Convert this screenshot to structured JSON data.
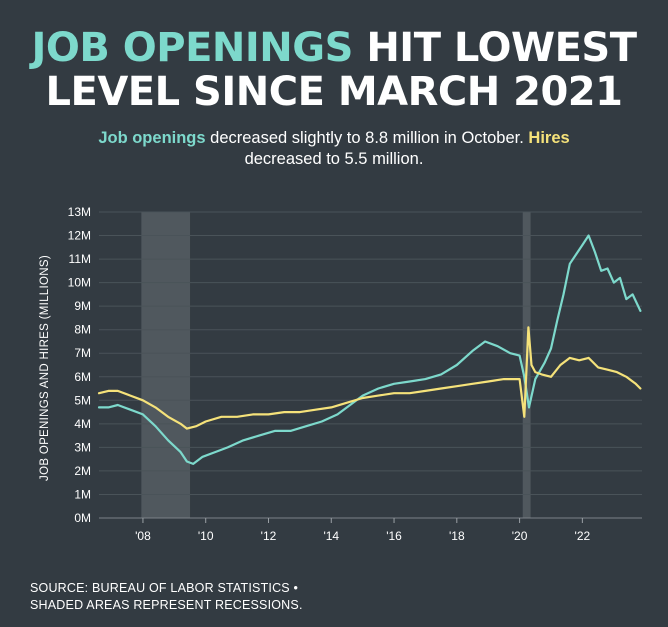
{
  "headline": {
    "accent": "JOB OPENINGS",
    "rest_line1": " HIT LOWEST",
    "line2": "LEVEL SINCE MARCH 2021"
  },
  "subtitle": {
    "openings_label": "Job openings",
    "part1": " decreased slightly to 8.8 million in October. ",
    "hires_label": "Hires",
    "part2": "decreased to 5.5 million."
  },
  "source": {
    "line1": "SOURCE: BUREAU OF LABOR STATISTICS •",
    "line2": "SHADED AREAS REPRESENT RECESSIONS."
  },
  "colors": {
    "background": "#333b42",
    "openings": "#7dd9cc",
    "hires": "#f5e27a",
    "recession": "#50585e",
    "grid": "#4a5359"
  },
  "chart_data": {
    "type": "line",
    "ylabel": "JOB OPENINGS AND HIRES (MILLIONS)",
    "xlabel": "",
    "xlim": [
      2006.6,
      2023.9
    ],
    "ylim": [
      0,
      13
    ],
    "y_ticks": [
      0,
      1,
      2,
      3,
      4,
      5,
      6,
      7,
      8,
      9,
      10,
      11,
      12,
      13
    ],
    "y_tick_labels": [
      "0M",
      "1M",
      "2M",
      "3M",
      "4M",
      "5M",
      "6M",
      "7M",
      "8M",
      "9M",
      "10M",
      "11M",
      "12M",
      "13M"
    ],
    "x_ticks": [
      2008,
      2010,
      2012,
      2014,
      2016,
      2018,
      2020,
      2022
    ],
    "x_tick_labels": [
      "'08",
      "'10",
      "'12",
      "'14",
      "'16",
      "'18",
      "'20",
      "'22"
    ],
    "recessions": [
      [
        2007.95,
        2009.5
      ],
      [
        2020.1,
        2020.35
      ]
    ],
    "series": [
      {
        "name": "Job openings",
        "x": [
          2006.6,
          2006.9,
          2007.2,
          2007.6,
          2008.0,
          2008.4,
          2008.8,
          2009.2,
          2009.4,
          2009.6,
          2009.9,
          2010.3,
          2010.7,
          2011.2,
          2011.7,
          2012.2,
          2012.7,
          2013.2,
          2013.7,
          2014.2,
          2014.6,
          2015.0,
          2015.5,
          2016.0,
          2016.5,
          2017.0,
          2017.5,
          2018.0,
          2018.5,
          2018.9,
          2019.3,
          2019.7,
          2020.0,
          2020.15,
          2020.3,
          2020.5,
          2020.8,
          2021.0,
          2021.2,
          2021.4,
          2021.6,
          2021.8,
          2022.0,
          2022.2,
          2022.4,
          2022.6,
          2022.8,
          2023.0,
          2023.2,
          2023.4,
          2023.6,
          2023.85
        ],
        "values": [
          4.7,
          4.7,
          4.8,
          4.6,
          4.4,
          3.9,
          3.3,
          2.8,
          2.4,
          2.3,
          2.6,
          2.8,
          3.0,
          3.3,
          3.5,
          3.7,
          3.7,
          3.9,
          4.1,
          4.4,
          4.8,
          5.2,
          5.5,
          5.7,
          5.8,
          5.9,
          6.1,
          6.5,
          7.1,
          7.5,
          7.3,
          7.0,
          6.9,
          6.0,
          4.7,
          5.9,
          6.6,
          7.2,
          8.4,
          9.5,
          10.8,
          11.2,
          11.6,
          12.0,
          11.3,
          10.5,
          10.6,
          10.0,
          10.2,
          9.3,
          9.5,
          8.8
        ]
      },
      {
        "name": "Hires",
        "x": [
          2006.6,
          2006.9,
          2007.2,
          2007.6,
          2008.0,
          2008.4,
          2008.8,
          2009.2,
          2009.4,
          2009.7,
          2010.0,
          2010.5,
          2011.0,
          2011.5,
          2012.0,
          2012.5,
          2013.0,
          2013.5,
          2014.0,
          2014.5,
          2015.0,
          2015.5,
          2016.0,
          2016.5,
          2017.0,
          2017.5,
          2018.0,
          2018.5,
          2019.0,
          2019.5,
          2020.0,
          2020.15,
          2020.28,
          2020.38,
          2020.5,
          2020.7,
          2021.0,
          2021.3,
          2021.6,
          2021.9,
          2022.2,
          2022.5,
          2022.8,
          2023.1,
          2023.4,
          2023.7,
          2023.85
        ],
        "values": [
          5.3,
          5.4,
          5.4,
          5.2,
          5.0,
          4.7,
          4.3,
          4.0,
          3.8,
          3.9,
          4.1,
          4.3,
          4.3,
          4.4,
          4.4,
          4.5,
          4.5,
          4.6,
          4.7,
          4.9,
          5.1,
          5.2,
          5.3,
          5.3,
          5.4,
          5.5,
          5.6,
          5.7,
          5.8,
          5.9,
          5.9,
          4.3,
          8.1,
          6.5,
          6.2,
          6.1,
          6.0,
          6.5,
          6.8,
          6.7,
          6.8,
          6.4,
          6.3,
          6.2,
          6.0,
          5.7,
          5.5
        ]
      }
    ]
  }
}
